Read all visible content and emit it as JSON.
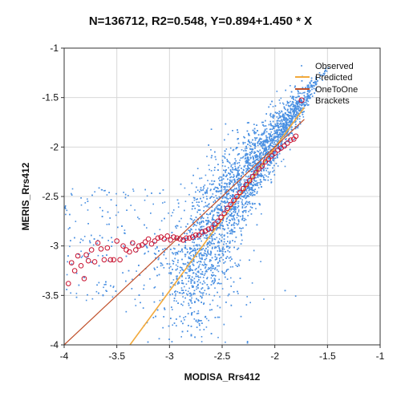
{
  "chart_data": {
    "type": "scatter",
    "title": "N=136712, R2=0.548, Y=0.894+1.450 * X",
    "xlabel": "MODISA_Rrs412",
    "ylabel": "MERIS_Rrs412",
    "xlim": [
      -4,
      -1
    ],
    "ylim": [
      -4,
      -1
    ],
    "x_ticks": [
      "-4",
      "-3.5",
      "-3",
      "-2.5",
      "-2",
      "-1.5",
      "-1"
    ],
    "y_ticks": [
      "-1",
      "-1.5",
      "-2",
      "-2.5",
      "-3",
      "-3.5",
      "-4"
    ],
    "grid": true,
    "legend": {
      "position": "top-right",
      "entries": [
        "Observed",
        "Predicted",
        "OneToOne",
        "Brackets"
      ]
    },
    "colors": {
      "observed": "#4a90e2",
      "predicted": "#f2a93b",
      "onetoone": "#c0502a",
      "brackets": "#c8102e"
    },
    "predicted_line": {
      "intercept": 0.894,
      "slope": 1.45,
      "x_range": [
        -3.7,
        -1.72
      ]
    },
    "onetoone_line": {
      "x_range": [
        -4,
        -1.72
      ]
    },
    "observed_summary": {
      "n": 136712
    },
    "brackets": [
      {
        "x": -3.96,
        "y": -3.38
      },
      {
        "x": -3.93,
        "y": -3.17
      },
      {
        "x": -3.9,
        "y": -3.25
      },
      {
        "x": -3.87,
        "y": -3.1
      },
      {
        "x": -3.84,
        "y": -3.2
      },
      {
        "x": -3.81,
        "y": -3.33
      },
      {
        "x": -3.79,
        "y": -3.09
      },
      {
        "x": -3.77,
        "y": -3.15
      },
      {
        "x": -3.74,
        "y": -3.04
      },
      {
        "x": -3.71,
        "y": -3.16
      },
      {
        "x": -3.68,
        "y": -2.97
      },
      {
        "x": -3.65,
        "y": -3.03
      },
      {
        "x": -3.62,
        "y": -3.14
      },
      {
        "x": -3.59,
        "y": -3.02
      },
      {
        "x": -3.56,
        "y": -3.14
      },
      {
        "x": -3.53,
        "y": -3.14
      },
      {
        "x": -3.5,
        "y": -2.95
      },
      {
        "x": -3.47,
        "y": -3.14
      },
      {
        "x": -3.44,
        "y": -3.0
      },
      {
        "x": -3.41,
        "y": -3.04
      },
      {
        "x": -3.38,
        "y": -3.06
      },
      {
        "x": -3.35,
        "y": -2.97
      },
      {
        "x": -3.32,
        "y": -3.04
      },
      {
        "x": -3.29,
        "y": -3.0
      },
      {
        "x": -3.26,
        "y": -2.99
      },
      {
        "x": -3.23,
        "y": -2.96
      },
      {
        "x": -3.2,
        "y": -2.93
      },
      {
        "x": -3.17,
        "y": -2.98
      },
      {
        "x": -3.14,
        "y": -2.95
      },
      {
        "x": -3.11,
        "y": -2.92
      },
      {
        "x": -3.08,
        "y": -2.91
      },
      {
        "x": -3.05,
        "y": -2.93
      },
      {
        "x": -3.02,
        "y": -2.9
      },
      {
        "x": -2.99,
        "y": -2.94
      },
      {
        "x": -2.96,
        "y": -2.91
      },
      {
        "x": -2.93,
        "y": -2.92
      },
      {
        "x": -2.9,
        "y": -2.93
      },
      {
        "x": -2.87,
        "y": -2.94
      },
      {
        "x": -2.84,
        "y": -2.92
      },
      {
        "x": -2.81,
        "y": -2.92
      },
      {
        "x": -2.78,
        "y": -2.91
      },
      {
        "x": -2.75,
        "y": -2.89
      },
      {
        "x": -2.72,
        "y": -2.89
      },
      {
        "x": -2.69,
        "y": -2.86
      },
      {
        "x": -2.66,
        "y": -2.85
      },
      {
        "x": -2.63,
        "y": -2.83
      },
      {
        "x": -2.6,
        "y": -2.82
      },
      {
        "x": -2.57,
        "y": -2.78
      },
      {
        "x": -2.54,
        "y": -2.75
      },
      {
        "x": -2.51,
        "y": -2.71
      },
      {
        "x": -2.48,
        "y": -2.67
      },
      {
        "x": -2.45,
        "y": -2.62
      },
      {
        "x": -2.42,
        "y": -2.58
      },
      {
        "x": -2.39,
        "y": -2.54
      },
      {
        "x": -2.36,
        "y": -2.5
      },
      {
        "x": -2.33,
        "y": -2.46
      },
      {
        "x": -2.3,
        "y": -2.42
      },
      {
        "x": -2.27,
        "y": -2.38
      },
      {
        "x": -2.24,
        "y": -2.34
      },
      {
        "x": -2.21,
        "y": -2.3
      },
      {
        "x": -2.18,
        "y": -2.26
      },
      {
        "x": -2.15,
        "y": -2.22
      },
      {
        "x": -2.12,
        "y": -2.19
      },
      {
        "x": -2.09,
        "y": -2.15
      },
      {
        "x": -2.06,
        "y": -2.12
      },
      {
        "x": -2.03,
        "y": -2.09
      },
      {
        "x": -2.0,
        "y": -2.06
      },
      {
        "x": -1.97,
        "y": -2.03
      },
      {
        "x": -1.94,
        "y": -2.01
      },
      {
        "x": -1.91,
        "y": -1.99
      },
      {
        "x": -1.88,
        "y": -1.96
      },
      {
        "x": -1.85,
        "y": -1.93
      },
      {
        "x": -1.82,
        "y": -1.92
      },
      {
        "x": -1.8,
        "y": -1.89
      }
    ]
  }
}
